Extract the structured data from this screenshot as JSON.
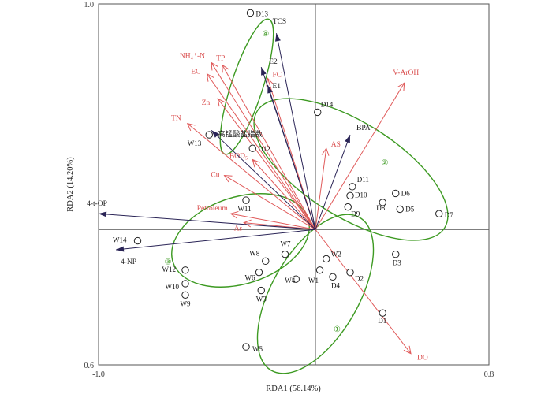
{
  "chart_data": {
    "type": "scatter",
    "subtype": "rda-biplot",
    "xlabel": "RDA1 (56.14%)",
    "ylabel": "RDA2 (14.20%)",
    "xlim": [
      -1.0,
      0.8
    ],
    "ylim": [
      -0.6,
      1.0
    ],
    "x_tick_labels": [
      {
        "value": -1.0,
        "label": "-1.0"
      },
      {
        "value": 0.8,
        "label": "0.8"
      }
    ],
    "y_tick_labels": [
      {
        "value": 1.0,
        "label": "1.0"
      },
      {
        "value": -0.6,
        "label": "-0.6"
      }
    ],
    "environmental_vectors": [
      {
        "name": "NH4+-N",
        "label": "NH₄⁺-N",
        "x": -0.48,
        "y": 0.74
      },
      {
        "name": "TP",
        "label": "TP",
        "x": -0.43,
        "y": 0.73
      },
      {
        "name": "EC",
        "label": "EC",
        "x": -0.5,
        "y": 0.69
      },
      {
        "name": "FC",
        "label": "FC",
        "x": -0.22,
        "y": 0.67
      },
      {
        "name": "Zn",
        "label": "Zn",
        "x": -0.45,
        "y": 0.58
      },
      {
        "name": "TN",
        "label": "TN",
        "x": -0.59,
        "y": 0.47
      },
      {
        "name": "AS",
        "label": "AS",
        "x": 0.05,
        "y": 0.36
      },
      {
        "name": "BOD5",
        "label": "BOD₅",
        "x": -0.29,
        "y": 0.31
      },
      {
        "name": "Cu",
        "label": "Cu",
        "x": -0.42,
        "y": 0.24
      },
      {
        "name": "Petroleum",
        "label": "Petroleum",
        "x": -0.39,
        "y": 0.07
      },
      {
        "name": "As",
        "label": "As",
        "x": -0.33,
        "y": 0.03
      },
      {
        "name": "V-ArOH",
        "label": "V-ArOH",
        "x": 0.41,
        "y": 0.65
      },
      {
        "name": "DO",
        "label": "DO",
        "x": 0.44,
        "y": -0.55
      }
    ],
    "pollutant_vectors": [
      {
        "name": "TCS",
        "label": "TCS",
        "x": -0.18,
        "y": 0.87
      },
      {
        "name": "E2",
        "label": "E2",
        "x": -0.25,
        "y": 0.72
      },
      {
        "name": "E1",
        "label": "E1",
        "x": -0.22,
        "y": 0.64
      },
      {
        "name": "BPA",
        "label": "BPA",
        "x": 0.16,
        "y": 0.42
      },
      {
        "name": "4-t-OP",
        "label": "4-t-OP",
        "x": -1.0,
        "y": 0.07
      },
      {
        "name": "4-NP",
        "label": "4-NP",
        "x": -0.92,
        "y": -0.09
      },
      {
        "name": "高锰酸盐指数",
        "label": "高锰酸盐指数",
        "x": -0.48,
        "y": 0.44
      }
    ],
    "sites": [
      {
        "name": "D13",
        "x": -0.3,
        "y": 0.96
      },
      {
        "name": "D14",
        "x": 0.01,
        "y": 0.52
      },
      {
        "name": "D12",
        "x": -0.29,
        "y": 0.36
      },
      {
        "name": "W13",
        "x": -0.49,
        "y": 0.42
      },
      {
        "name": "D11",
        "x": 0.17,
        "y": 0.19
      },
      {
        "name": "D10",
        "x": 0.16,
        "y": 0.15
      },
      {
        "name": "D9",
        "x": 0.15,
        "y": 0.1
      },
      {
        "name": "D8",
        "x": 0.31,
        "y": 0.12
      },
      {
        "name": "D6",
        "x": 0.37,
        "y": 0.16
      },
      {
        "name": "D5",
        "x": 0.39,
        "y": 0.09
      },
      {
        "name": "D7",
        "x": 0.57,
        "y": 0.07
      },
      {
        "name": "W11",
        "x": -0.32,
        "y": 0.13
      },
      {
        "name": "W14",
        "x": -0.82,
        "y": -0.05
      },
      {
        "name": "W7",
        "x": -0.14,
        "y": -0.11
      },
      {
        "name": "W8",
        "x": -0.23,
        "y": -0.14
      },
      {
        "name": "W12",
        "x": -0.6,
        "y": -0.18
      },
      {
        "name": "W6",
        "x": -0.26,
        "y": -0.19
      },
      {
        "name": "W10",
        "x": -0.6,
        "y": -0.24
      },
      {
        "name": "W9",
        "x": -0.6,
        "y": -0.29
      },
      {
        "name": "W4",
        "x": -0.09,
        "y": -0.22
      },
      {
        "name": "W3",
        "x": -0.25,
        "y": -0.27
      },
      {
        "name": "W2",
        "x": 0.05,
        "y": -0.13
      },
      {
        "name": "W1",
        "x": 0.02,
        "y": -0.18
      },
      {
        "name": "D4",
        "x": 0.08,
        "y": -0.21
      },
      {
        "name": "D2",
        "x": 0.16,
        "y": -0.19
      },
      {
        "name": "D3",
        "x": 0.37,
        "y": -0.11
      },
      {
        "name": "D1",
        "x": 0.31,
        "y": -0.37
      },
      {
        "name": "W5",
        "x": -0.32,
        "y": -0.52
      }
    ],
    "groups": [
      {
        "label": "①",
        "x": 0.1,
        "y": -0.44
      },
      {
        "label": "②",
        "x": 0.32,
        "y": 0.3
      },
      {
        "label": "③",
        "x": -0.68,
        "y": -0.14
      },
      {
        "label": "④",
        "x": -0.23,
        "y": 0.87
      }
    ]
  }
}
